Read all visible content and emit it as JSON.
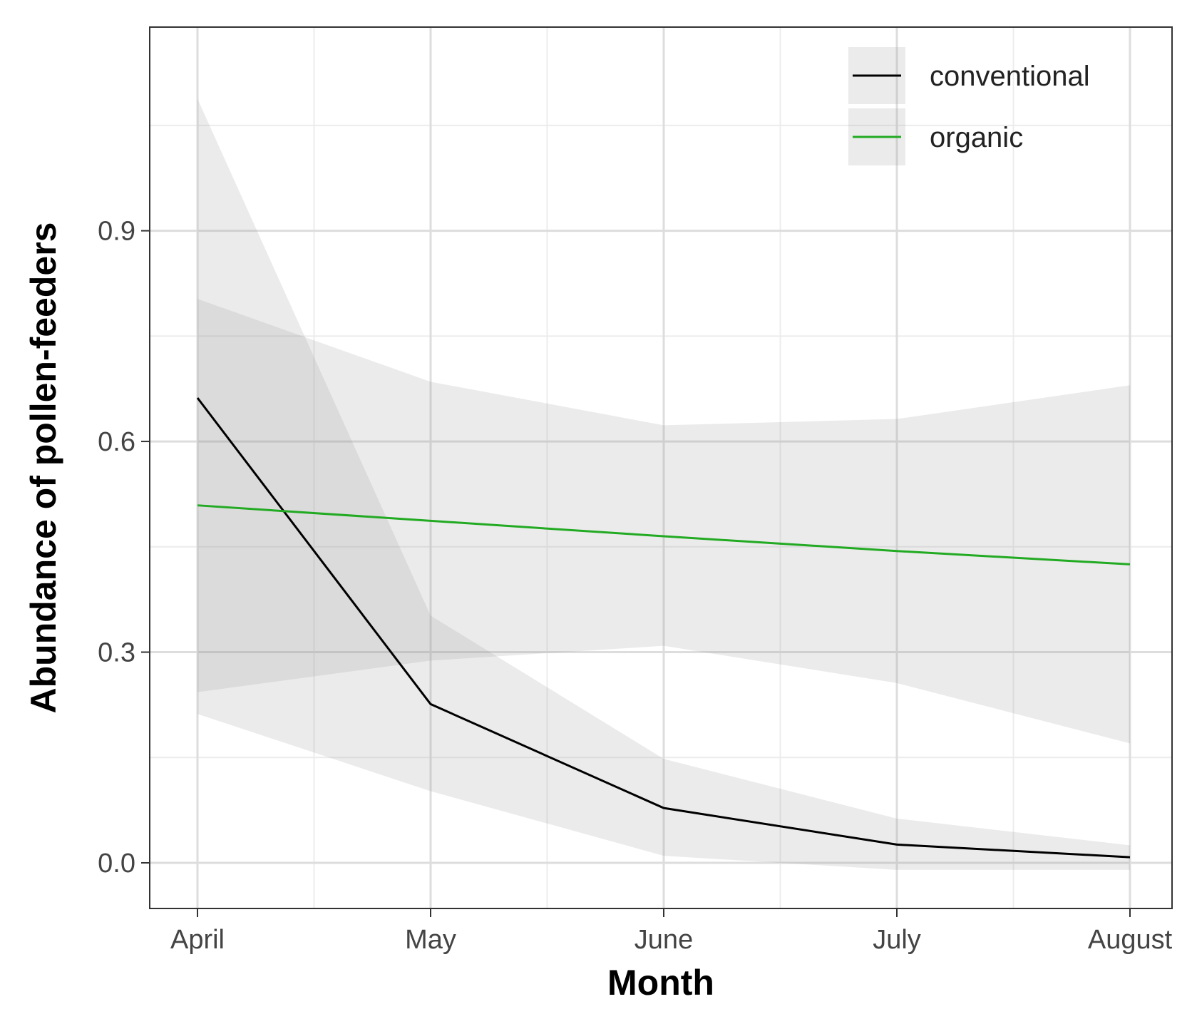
{
  "chart_data": {
    "type": "line",
    "title": "",
    "xlabel": "Month",
    "ylabel": "Abundance of pollen-feeders",
    "categories": [
      "April",
      "May",
      "June",
      "July",
      "August"
    ],
    "yticks": [
      0.0,
      0.3,
      0.6,
      0.9
    ],
    "ytick_labels": [
      "0.0",
      "0.3",
      "0.6",
      "0.9"
    ],
    "ylim": [
      -0.065,
      1.19
    ],
    "grid": true,
    "legend_position": "top-right",
    "series": [
      {
        "name": "conventional",
        "color": "#000000",
        "values": [
          0.662,
          0.226,
          0.078,
          0.026,
          0.008
        ],
        "lower": [
          0.212,
          0.102,
          0.01,
          -0.01,
          -0.01
        ],
        "upper": [
          1.088,
          0.352,
          0.148,
          0.063,
          0.025
        ]
      },
      {
        "name": "organic",
        "color": "#22aa22",
        "values": [
          0.509,
          0.487,
          0.465,
          0.444,
          0.425
        ],
        "lower": [
          0.243,
          0.288,
          0.309,
          0.256,
          0.17
        ],
        "upper": [
          0.803,
          0.685,
          0.623,
          0.632,
          0.68
        ]
      }
    ]
  }
}
